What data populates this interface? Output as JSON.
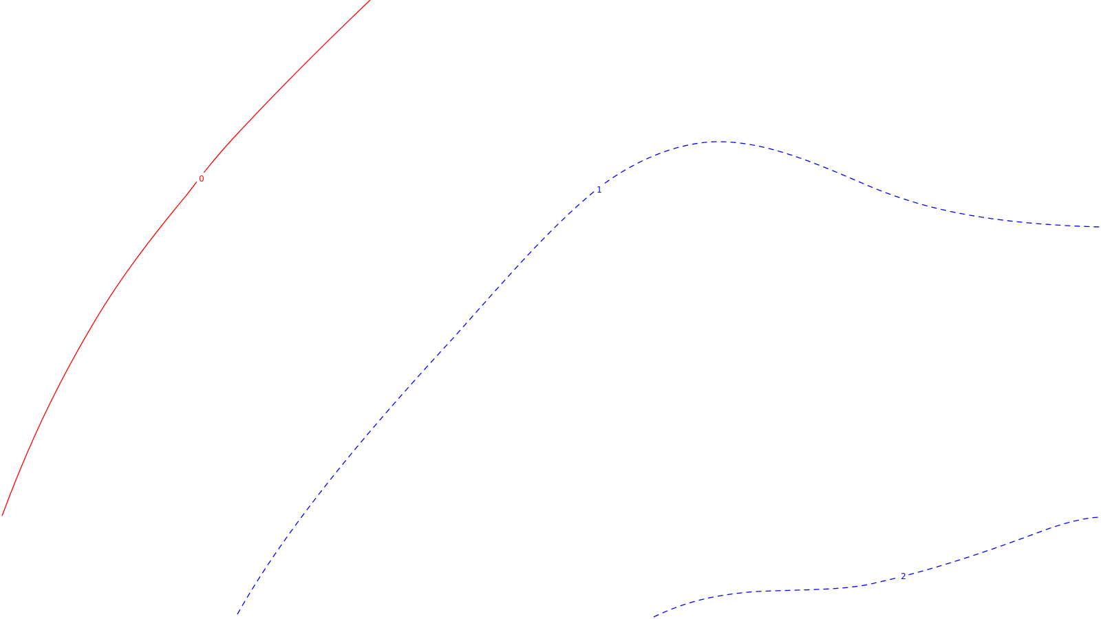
{
  "contour_plot": {
    "contours": [
      {
        "level_label": "0",
        "color": "#ff0000",
        "line_style": "solid"
      },
      {
        "level_label": "1",
        "color": "#0000ff",
        "line_style": "dashed"
      },
      {
        "level_label": "2",
        "color": "#0000ff",
        "line_style": "dashed"
      }
    ]
  }
}
